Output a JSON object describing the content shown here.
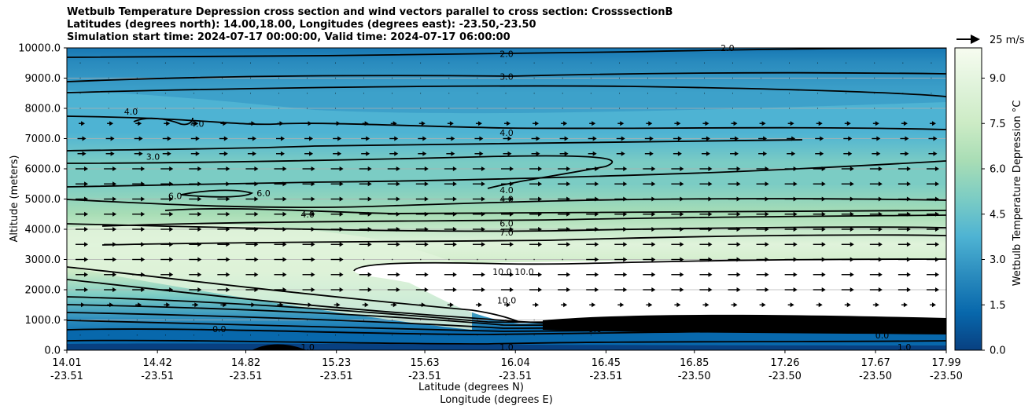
{
  "chart_data": {
    "type": "contour",
    "title_lines": [
      "Wetbulb Temperature Depression cross section and wind vectors parallel to cross section: CrosssectionB",
      "Latitudes (degrees north): 14.00,18.00, Longitudes (degrees east): -23.50,-23.50",
      "Simulation start time: 2024-07-17 00:00:00, Valid time: 2024-07-17 06:00:00"
    ],
    "ylabel": "Altitude (meters)",
    "xlabel_line1": "Latitude (degrees N)",
    "xlabel_line2": "Longitude (degrees E)",
    "ylim": [
      0,
      10000
    ],
    "y_ticks": [
      "0.0",
      "1000.0",
      "2000.0",
      "3000.0",
      "4000.0",
      "5000.0",
      "6000.0",
      "7000.0",
      "8000.0",
      "9000.0",
      "10000.0"
    ],
    "y_tick_values": [
      0,
      1000,
      2000,
      3000,
      4000,
      5000,
      6000,
      7000,
      8000,
      9000,
      10000
    ],
    "x_range": [
      14.01,
      17.99
    ],
    "x_ticks": [
      {
        "lat": "14.01",
        "lon": "-23.51",
        "x": 14.01
      },
      {
        "lat": "14.42",
        "lon": "-23.51",
        "x": 14.42
      },
      {
        "lat": "14.82",
        "lon": "-23.51",
        "x": 14.82
      },
      {
        "lat": "15.23",
        "lon": "-23.51",
        "x": 15.23
      },
      {
        "lat": "15.63",
        "lon": "-23.51",
        "x": 15.63
      },
      {
        "lat": "16.04",
        "lon": "-23.51",
        "x": 16.04
      },
      {
        "lat": "16.45",
        "lon": "-23.51",
        "x": 16.45
      },
      {
        "lat": "16.85",
        "lon": "-23.50",
        "x": 16.85
      },
      {
        "lat": "17.26",
        "lon": "-23.50",
        "x": 17.26
      },
      {
        "lat": "17.67",
        "lon": "-23.50",
        "x": 17.67
      },
      {
        "lat": "17.99",
        "lon": "-23.50",
        "x": 17.99
      }
    ],
    "colorbar": {
      "label": "Wetbulb Temperature Depression °C",
      "ticks": [
        "0.0",
        "1.5",
        "3.0",
        "4.5",
        "6.0",
        "7.5",
        "9.0"
      ],
      "tick_values": [
        0,
        1.5,
        3.0,
        4.5,
        6.0,
        7.5,
        9.0
      ],
      "range": [
        0,
        10
      ],
      "colormap": [
        "#084081",
        "#0868ac",
        "#2b8cbe",
        "#4eb3d3",
        "#7bccc4",
        "#a8ddb5",
        "#ccebc5",
        "#e0f3db",
        "#f7fcf0"
      ]
    },
    "quiver_key": {
      "label": "25 m/s"
    },
    "grid": "horizontal",
    "wind_vectors": {
      "levels_m": [
        500,
        1000,
        1500,
        2000,
        2500,
        3000,
        3500,
        4000,
        4500,
        5000,
        5500,
        6000,
        6500,
        7000,
        7500,
        8000,
        8500,
        9000,
        9500
      ],
      "note": "arrows pointing east (positive) at mid levels; strongest near 2000-6000 m"
    },
    "contour_labels": [
      {
        "text": "2.0",
        "x": 16.0,
        "y": 9800
      },
      {
        "text": "3.0",
        "x": 16.0,
        "y": 9050
      },
      {
        "text": "2.0",
        "x": 17.0,
        "y": 10000
      },
      {
        "text": "4.0",
        "x": 14.3,
        "y": 7900
      },
      {
        "text": "4.0",
        "x": 14.6,
        "y": 7500
      },
      {
        "text": "3.0",
        "x": 14.4,
        "y": 6400
      },
      {
        "text": "4.0",
        "x": 16.0,
        "y": 7200
      },
      {
        "text": "6.0",
        "x": 14.5,
        "y": 5100
      },
      {
        "text": "6.0",
        "x": 14.9,
        "y": 5200
      },
      {
        "text": "4.0",
        "x": 15.1,
        "y": 4500
      },
      {
        "text": "4.0",
        "x": 16.0,
        "y": 5300
      },
      {
        "text": "4.0",
        "x": 16.0,
        "y": 5000
      },
      {
        "text": "6.0",
        "x": 16.0,
        "y": 4200
      },
      {
        "text": "7.0",
        "x": 16.0,
        "y": 3900
      },
      {
        "text": "10.0",
        "x": 15.98,
        "y": 2600
      },
      {
        "text": "10.0",
        "x": 16.08,
        "y": 2600
      },
      {
        "text": "10.0",
        "x": 16.0,
        "y": 1650
      },
      {
        "text": "1.0",
        "x": 16.0,
        "y": 100
      },
      {
        "text": "1.0",
        "x": 15.1,
        "y": 100
      },
      {
        "text": "0.0",
        "x": 14.7,
        "y": 700
      },
      {
        "text": "0.0",
        "x": 17.7,
        "y": 500
      },
      {
        "text": "1.0",
        "x": 17.8,
        "y": 100
      },
      {
        "text": "0.0",
        "x": 16.4,
        "y": 700
      }
    ]
  }
}
